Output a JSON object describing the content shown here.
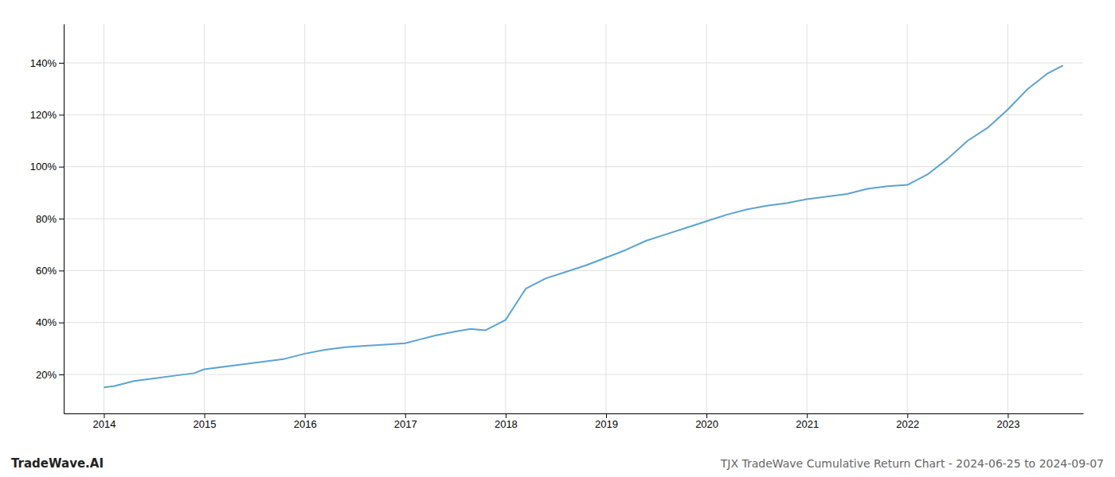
{
  "chart_data": {
    "type": "line",
    "title": "TJX TradeWave Cumulative Return Chart - 2024-06-25 to 2024-09-07",
    "annotations": [
      "TradeWave.AI"
    ],
    "color": "#5ba3d0",
    "grid": true,
    "x": [
      2014.0,
      2014.1,
      2014.2,
      2014.3,
      2014.5,
      2014.7,
      2014.9,
      2015.0,
      2015.2,
      2015.4,
      2015.6,
      2015.8,
      2016.0,
      2016.2,
      2016.4,
      2016.6,
      2016.8,
      2017.0,
      2017.15,
      2017.3,
      2017.5,
      2017.65,
      2017.8,
      2018.0,
      2018.1,
      2018.2,
      2018.4,
      2018.6,
      2018.8,
      2019.0,
      2019.2,
      2019.4,
      2019.6,
      2019.8,
      2020.0,
      2020.2,
      2020.4,
      2020.6,
      2020.8,
      2021.0,
      2021.2,
      2021.4,
      2021.6,
      2021.8,
      2022.0,
      2022.2,
      2022.4,
      2022.6,
      2022.8,
      2023.0,
      2023.2,
      2023.4,
      2023.55
    ],
    "values": [
      15.0,
      15.5,
      16.5,
      17.5,
      18.5,
      19.5,
      20.5,
      22.0,
      23.0,
      24.0,
      25.0,
      26.0,
      28.0,
      29.5,
      30.5,
      31.0,
      31.5,
      32.0,
      33.5,
      35.0,
      36.5,
      37.5,
      37.0,
      41.0,
      47.0,
      53.0,
      57.0,
      59.5,
      62.0,
      65.0,
      68.0,
      71.5,
      74.0,
      76.5,
      79.0,
      81.5,
      83.5,
      85.0,
      86.0,
      87.5,
      88.5,
      89.5,
      91.5,
      92.5,
      93.0,
      97.0,
      103.0,
      110.0,
      115.0,
      122.0,
      130.0,
      136.0,
      139.0
    ],
    "xlim": [
      2013.6,
      2023.75
    ],
    "ylim": [
      5,
      155
    ],
    "xticks": [
      2014,
      2015,
      2016,
      2017,
      2018,
      2019,
      2020,
      2021,
      2022,
      2023
    ],
    "yticks": [
      {
        "value": 20,
        "label": "20%"
      },
      {
        "value": 40,
        "label": "40%"
      },
      {
        "value": 60,
        "label": "60%"
      },
      {
        "value": 80,
        "label": "80%"
      },
      {
        "value": 100,
        "label": "100%"
      },
      {
        "value": 120,
        "label": "120%"
      },
      {
        "value": 140,
        "label": "140%"
      }
    ]
  }
}
